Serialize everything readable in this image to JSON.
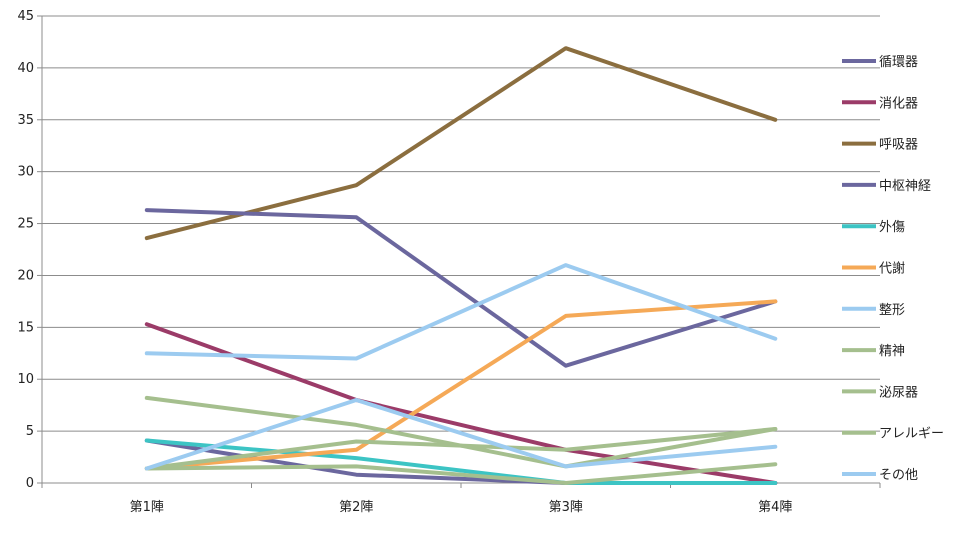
{
  "chart_data": {
    "type": "line",
    "categories": [
      "第1陣",
      "第2陣",
      "第3陣",
      "第4陣"
    ],
    "ylim": [
      0,
      45
    ],
    "yticks": [
      0,
      5,
      10,
      15,
      20,
      25,
      30,
      35,
      40,
      45
    ],
    "grid": true,
    "legend_position": "right",
    "series": [
      {
        "name": "循環器",
        "color": "#6b679e",
        "values": [
          4.1,
          0.8,
          0.0,
          0.0
        ]
      },
      {
        "name": "消化器",
        "color": "#9b3b68",
        "values": [
          15.3,
          8.0,
          3.2,
          0.0
        ]
      },
      {
        "name": "呼吸器",
        "color": "#8b6e3f",
        "values": [
          23.6,
          28.7,
          41.9,
          35.0
        ]
      },
      {
        "name": "中枢神経",
        "color": "#6b679e",
        "values": [
          26.3,
          25.6,
          11.3,
          17.5
        ]
      },
      {
        "name": "外傷",
        "color": "#3cc4c4",
        "values": [
          4.1,
          2.4,
          0.0,
          0.0
        ]
      },
      {
        "name": "代謝",
        "color": "#f5a957",
        "values": [
          1.4,
          3.2,
          16.1,
          17.5
        ]
      },
      {
        "name": "整形",
        "color": "#9ccbf0",
        "values": [
          12.5,
          12.0,
          21.0,
          13.9
        ]
      },
      {
        "name": "精神",
        "color": "#a5bf8e",
        "values": [
          8.2,
          5.6,
          1.6,
          5.2
        ]
      },
      {
        "name": "泌尿器",
        "color": "#a5bf8e",
        "values": [
          1.4,
          1.6,
          0.0,
          1.8
        ]
      },
      {
        "name": "アレルギー",
        "color": "#a5bf8e",
        "values": [
          1.4,
          4.0,
          3.2,
          5.2
        ]
      },
      {
        "name": "その他",
        "color": "#9ccbf0",
        "values": [
          1.4,
          8.0,
          1.6,
          3.5
        ]
      }
    ]
  }
}
